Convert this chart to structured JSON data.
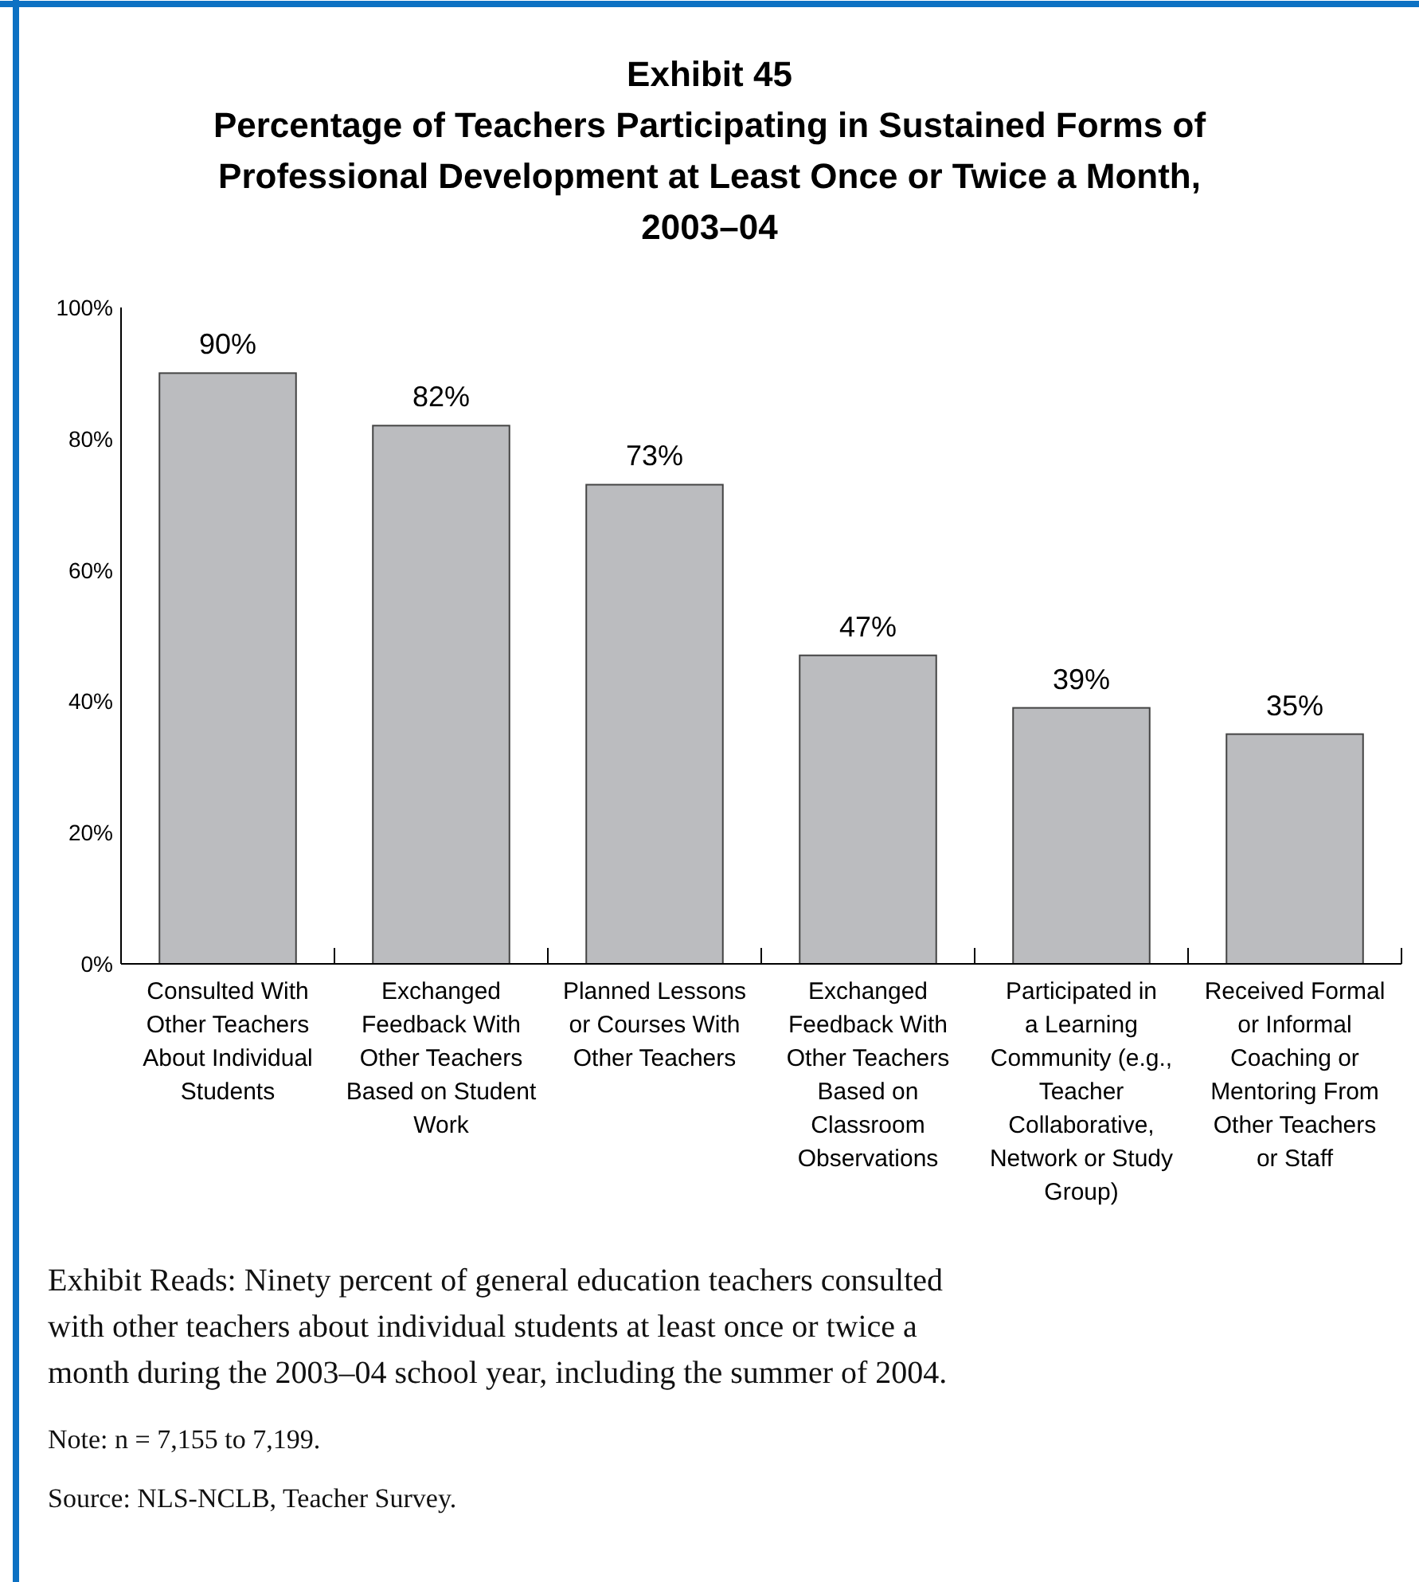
{
  "chart_data": {
    "type": "bar",
    "title": "Exhibit 45",
    "subtitle": "Percentage of Teachers Participating in Sustained Forms of Professional Development at Least Once or Twice a Month, 2003–04",
    "categories": [
      "Consulted With Other Teachers About Individual Students",
      "Exchanged Feedback With Other Teachers Based on Student Work",
      "Planned Lessons or Courses With Other Teachers",
      "Exchanged Feedback With Other Teachers Based on Classroom Observations",
      "Participated in a Learning Community (e.g., Teacher Collaborative, Network or Study Group)",
      "Received Formal or Informal Coaching or Mentoring From Other Teachers or Staff"
    ],
    "values": [
      90,
      82,
      73,
      47,
      39,
      35
    ],
    "color": "#bbbcbf",
    "data_labels": true,
    "value_labels": [
      "90%",
      "82%",
      "73%",
      "47%",
      "39%",
      "35%"
    ],
    "ylim": [
      0,
      100
    ],
    "yticks": [
      {
        "value": 0,
        "label": "0%"
      },
      {
        "value": 20,
        "label": "20%"
      },
      {
        "value": 40,
        "label": "40%"
      },
      {
        "value": 60,
        "label": "60%"
      },
      {
        "value": 80,
        "label": "80%"
      },
      {
        "value": 100,
        "label": "100%"
      }
    ],
    "grid": false,
    "annotations": [
      "Exhibit Reads: Ninety percent of general education teachers consulted with other teachers about individual students at least once or twice a month during the 2003–04 school year, including the summer of 2004.",
      "Note: n = 7,155 to 7,199.",
      "Source: NLS-NCLB, Teacher Survey."
    ]
  }
}
